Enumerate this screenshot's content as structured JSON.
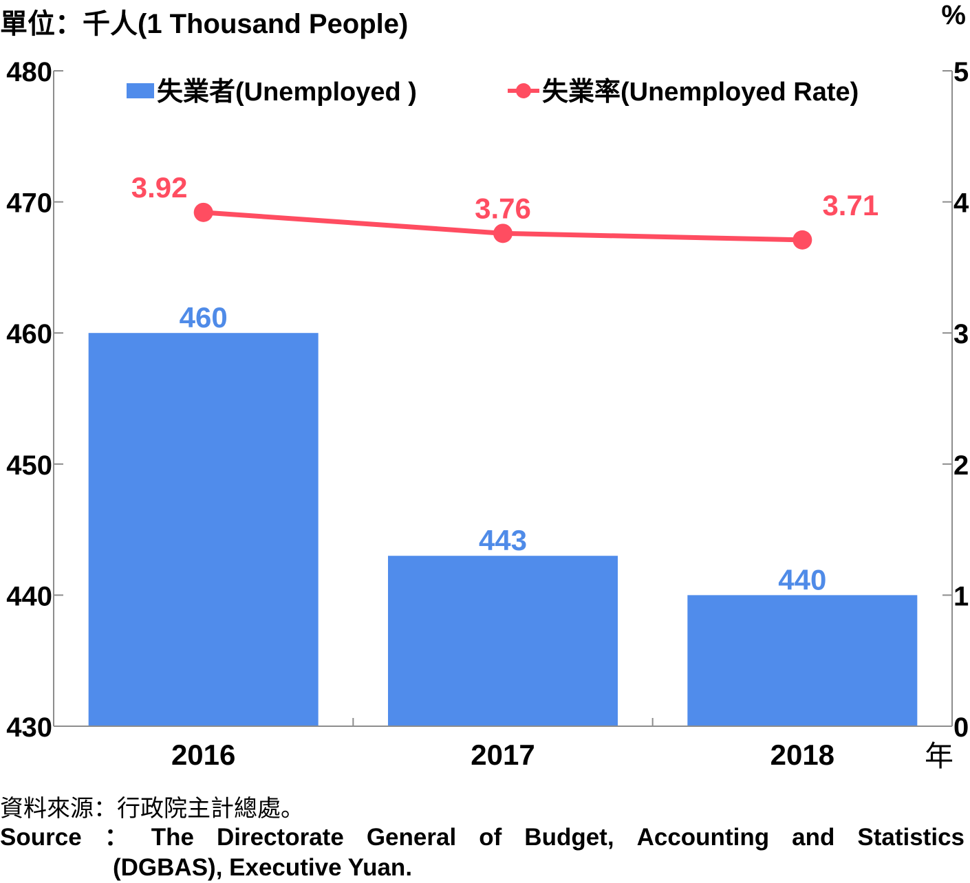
{
  "chart_data": {
    "type": "bar+line",
    "unit_label": "單位：千人(1 Thousand People)",
    "right_unit_label": "%",
    "x_unit_label": "年",
    "categories": [
      "2016",
      "2017",
      "2018"
    ],
    "left_axis": {
      "ylim": [
        430,
        480
      ],
      "ticks": [
        "430",
        "440",
        "450",
        "460",
        "470",
        "480"
      ]
    },
    "right_axis": {
      "ylim": [
        0,
        5
      ],
      "ticks": [
        "0",
        "1",
        "2",
        "3",
        "4",
        "5"
      ]
    },
    "series": [
      {
        "name": "失業者(Unemployed )",
        "type": "bar",
        "axis": "left",
        "values": [
          460,
          443,
          440
        ],
        "labels": [
          "460",
          "443",
          "440"
        ],
        "color": "#508CEB",
        "label_color": "#4F8BE8"
      },
      {
        "name": "失業率(Unemployed Rate)",
        "type": "line",
        "axis": "right",
        "values": [
          3.92,
          3.76,
          3.71
        ],
        "labels": [
          "3.92",
          "3.76",
          "3.71"
        ],
        "color": "#FF4D61",
        "label_color": "#FF4D61"
      }
    ],
    "legend_position": "top",
    "grid": false
  },
  "source": {
    "cn": "資料來源：行政院主計總處。",
    "en_line1_words": [
      "Source",
      "：",
      "The",
      "Directorate",
      "General",
      "of",
      "Budget,",
      "Accounting",
      "and",
      "Statistics"
    ],
    "en_line2": "(DGBAS), Executive Yuan."
  }
}
